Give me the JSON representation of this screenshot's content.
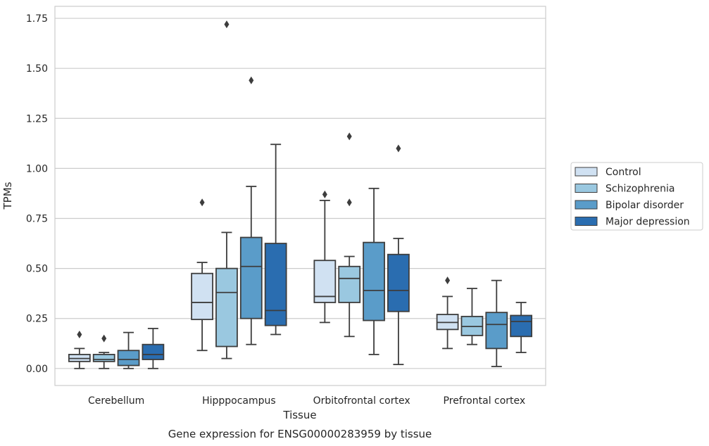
{
  "chart_data": {
    "type": "box",
    "xlabel": "Tissue",
    "ylabel": "TPMs",
    "caption": "Gene expression for ENSG00000283959 by tissue",
    "ylim": [
      -0.085,
      1.81
    ],
    "yticks": [
      "0.00",
      "0.25",
      "0.50",
      "0.75",
      "1.00",
      "1.25",
      "1.50",
      "1.75"
    ],
    "ytick_values": [
      0,
      0.25,
      0.5,
      0.75,
      1.0,
      1.25,
      1.5,
      1.75
    ],
    "grid": true,
    "legend_position": "right",
    "categories": [
      "Cerebellum",
      "Hipppocampus",
      "Orbitofrontal cortex",
      "Prefrontal cortex"
    ],
    "series": [
      {
        "name": "Control",
        "color": "#d0e1f2",
        "boxes": [
          {
            "whislo": 0.0,
            "q1": 0.035,
            "med": 0.05,
            "q3": 0.07,
            "whishi": 0.1,
            "fliers": [
              0.17
            ]
          },
          {
            "whislo": 0.09,
            "q1": 0.245,
            "med": 0.33,
            "q3": 0.475,
            "whishi": 0.53,
            "fliers": [
              0.83
            ]
          },
          {
            "whislo": 0.23,
            "q1": 0.33,
            "med": 0.36,
            "q3": 0.54,
            "whishi": 0.84,
            "fliers": [
              0.87
            ]
          },
          {
            "whislo": 0.1,
            "q1": 0.195,
            "med": 0.23,
            "q3": 0.27,
            "whishi": 0.36,
            "fliers": [
              0.44
            ]
          }
        ]
      },
      {
        "name": "Schizophrenia",
        "color": "#9ac8e0",
        "boxes": [
          {
            "whislo": 0.0,
            "q1": 0.035,
            "med": 0.045,
            "q3": 0.07,
            "whishi": 0.08,
            "fliers": [
              0.15
            ]
          },
          {
            "whislo": 0.05,
            "q1": 0.11,
            "med": 0.38,
            "q3": 0.5,
            "whishi": 0.68,
            "fliers": [
              1.72
            ]
          },
          {
            "whislo": 0.16,
            "q1": 0.33,
            "med": 0.45,
            "q3": 0.51,
            "whishi": 0.56,
            "fliers": [
              0.83,
              1.16
            ]
          },
          {
            "whislo": 0.12,
            "q1": 0.165,
            "med": 0.21,
            "q3": 0.26,
            "whishi": 0.4,
            "fliers": []
          }
        ]
      },
      {
        "name": "Bipolar disorder",
        "color": "#5a9cc9",
        "boxes": [
          {
            "whislo": 0.0,
            "q1": 0.015,
            "med": 0.045,
            "q3": 0.09,
            "whishi": 0.18,
            "fliers": []
          },
          {
            "whislo": 0.12,
            "q1": 0.25,
            "med": 0.51,
            "q3": 0.655,
            "whishi": 0.91,
            "fliers": [
              1.44
            ]
          },
          {
            "whislo": 0.07,
            "q1": 0.24,
            "med": 0.39,
            "q3": 0.63,
            "whishi": 0.9,
            "fliers": []
          },
          {
            "whislo": 0.01,
            "q1": 0.1,
            "med": 0.22,
            "q3": 0.28,
            "whishi": 0.44,
            "fliers": []
          }
        ]
      },
      {
        "name": "Major depression",
        "color": "#2a6db0",
        "boxes": [
          {
            "whislo": 0.0,
            "q1": 0.045,
            "med": 0.07,
            "q3": 0.12,
            "whishi": 0.2,
            "fliers": []
          },
          {
            "whislo": 0.17,
            "q1": 0.215,
            "med": 0.29,
            "q3": 0.625,
            "whishi": 1.12,
            "fliers": []
          },
          {
            "whislo": 0.02,
            "q1": 0.285,
            "med": 0.39,
            "q3": 0.57,
            "whishi": 0.65,
            "fliers": [
              1.1
            ]
          },
          {
            "whislo": 0.08,
            "q1": 0.16,
            "med": 0.235,
            "q3": 0.265,
            "whishi": 0.33,
            "fliers": []
          }
        ]
      }
    ]
  }
}
